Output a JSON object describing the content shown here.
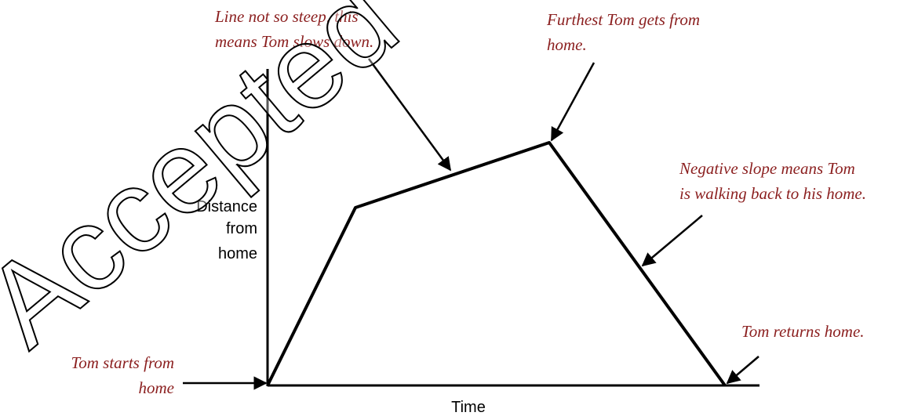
{
  "axes": {
    "y_label": [
      "Distance",
      "from",
      "home"
    ],
    "x_label": "Time"
  },
  "annotations": [
    {
      "lines": [
        "Line not so steep, this",
        "means Tom slows down."
      ]
    },
    {
      "lines": [
        "Furthest Tom gets from",
        "home."
      ]
    },
    {
      "lines": [
        "Negative slope means Tom",
        "is walking back to his home."
      ]
    },
    {
      "lines": [
        "Tom returns home."
      ]
    },
    {
      "lines": [
        "Tom starts from",
        "home"
      ]
    }
  ],
  "watermark": "Accepted"
}
